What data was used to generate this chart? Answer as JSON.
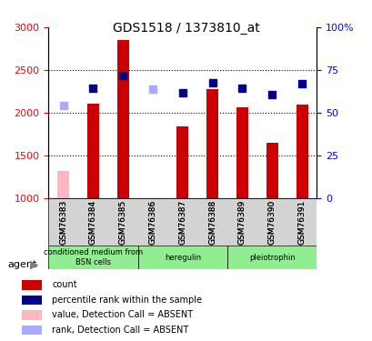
{
  "title": "GDS1518 / 1373810_at",
  "samples": [
    "GSM76383",
    "GSM76384",
    "GSM76385",
    "GSM76386",
    "GSM76387",
    "GSM76388",
    "GSM76389",
    "GSM76390",
    "GSM76391"
  ],
  "count_values": [
    null,
    2100,
    2850,
    null,
    1840,
    2280,
    2060,
    1650,
    2090
  ],
  "count_absent": [
    1320,
    null,
    null,
    null,
    null,
    null,
    null,
    null,
    null
  ],
  "rank_values": [
    null,
    2290,
    2430,
    null,
    2230,
    2350,
    2290,
    2210,
    2340
  ],
  "rank_absent": [
    2080,
    null,
    null,
    2280,
    null,
    null,
    null,
    null,
    null
  ],
  "ylim_left": [
    1000,
    3000
  ],
  "ylim_right": [
    0,
    100
  ],
  "yticks_left": [
    1000,
    1500,
    2000,
    2500,
    3000
  ],
  "yticks_right": [
    0,
    25,
    50,
    75,
    100
  ],
  "ytick_labels_right": [
    "0",
    "25",
    "50",
    "75",
    "100%"
  ],
  "groups": [
    {
      "label": "conditioned medium from\nBSN cells",
      "start": 0,
      "end": 3,
      "color": "#90ee90"
    },
    {
      "label": "heregulin",
      "start": 3,
      "end": 6,
      "color": "#90ee90"
    },
    {
      "label": "pleiotrophin",
      "start": 6,
      "end": 9,
      "color": "#90ee90"
    }
  ],
  "bar_color_present": "#cc0000",
  "bar_color_absent": "#ffb6c1",
  "dot_color_present": "#00008b",
  "dot_color_absent": "#aaaaff",
  "bar_width": 0.4,
  "dot_size": 6,
  "background_color": "#ffffff",
  "plot_bg_color": "#ffffff",
  "grid_color": "#000000",
  "agent_label": "agent"
}
